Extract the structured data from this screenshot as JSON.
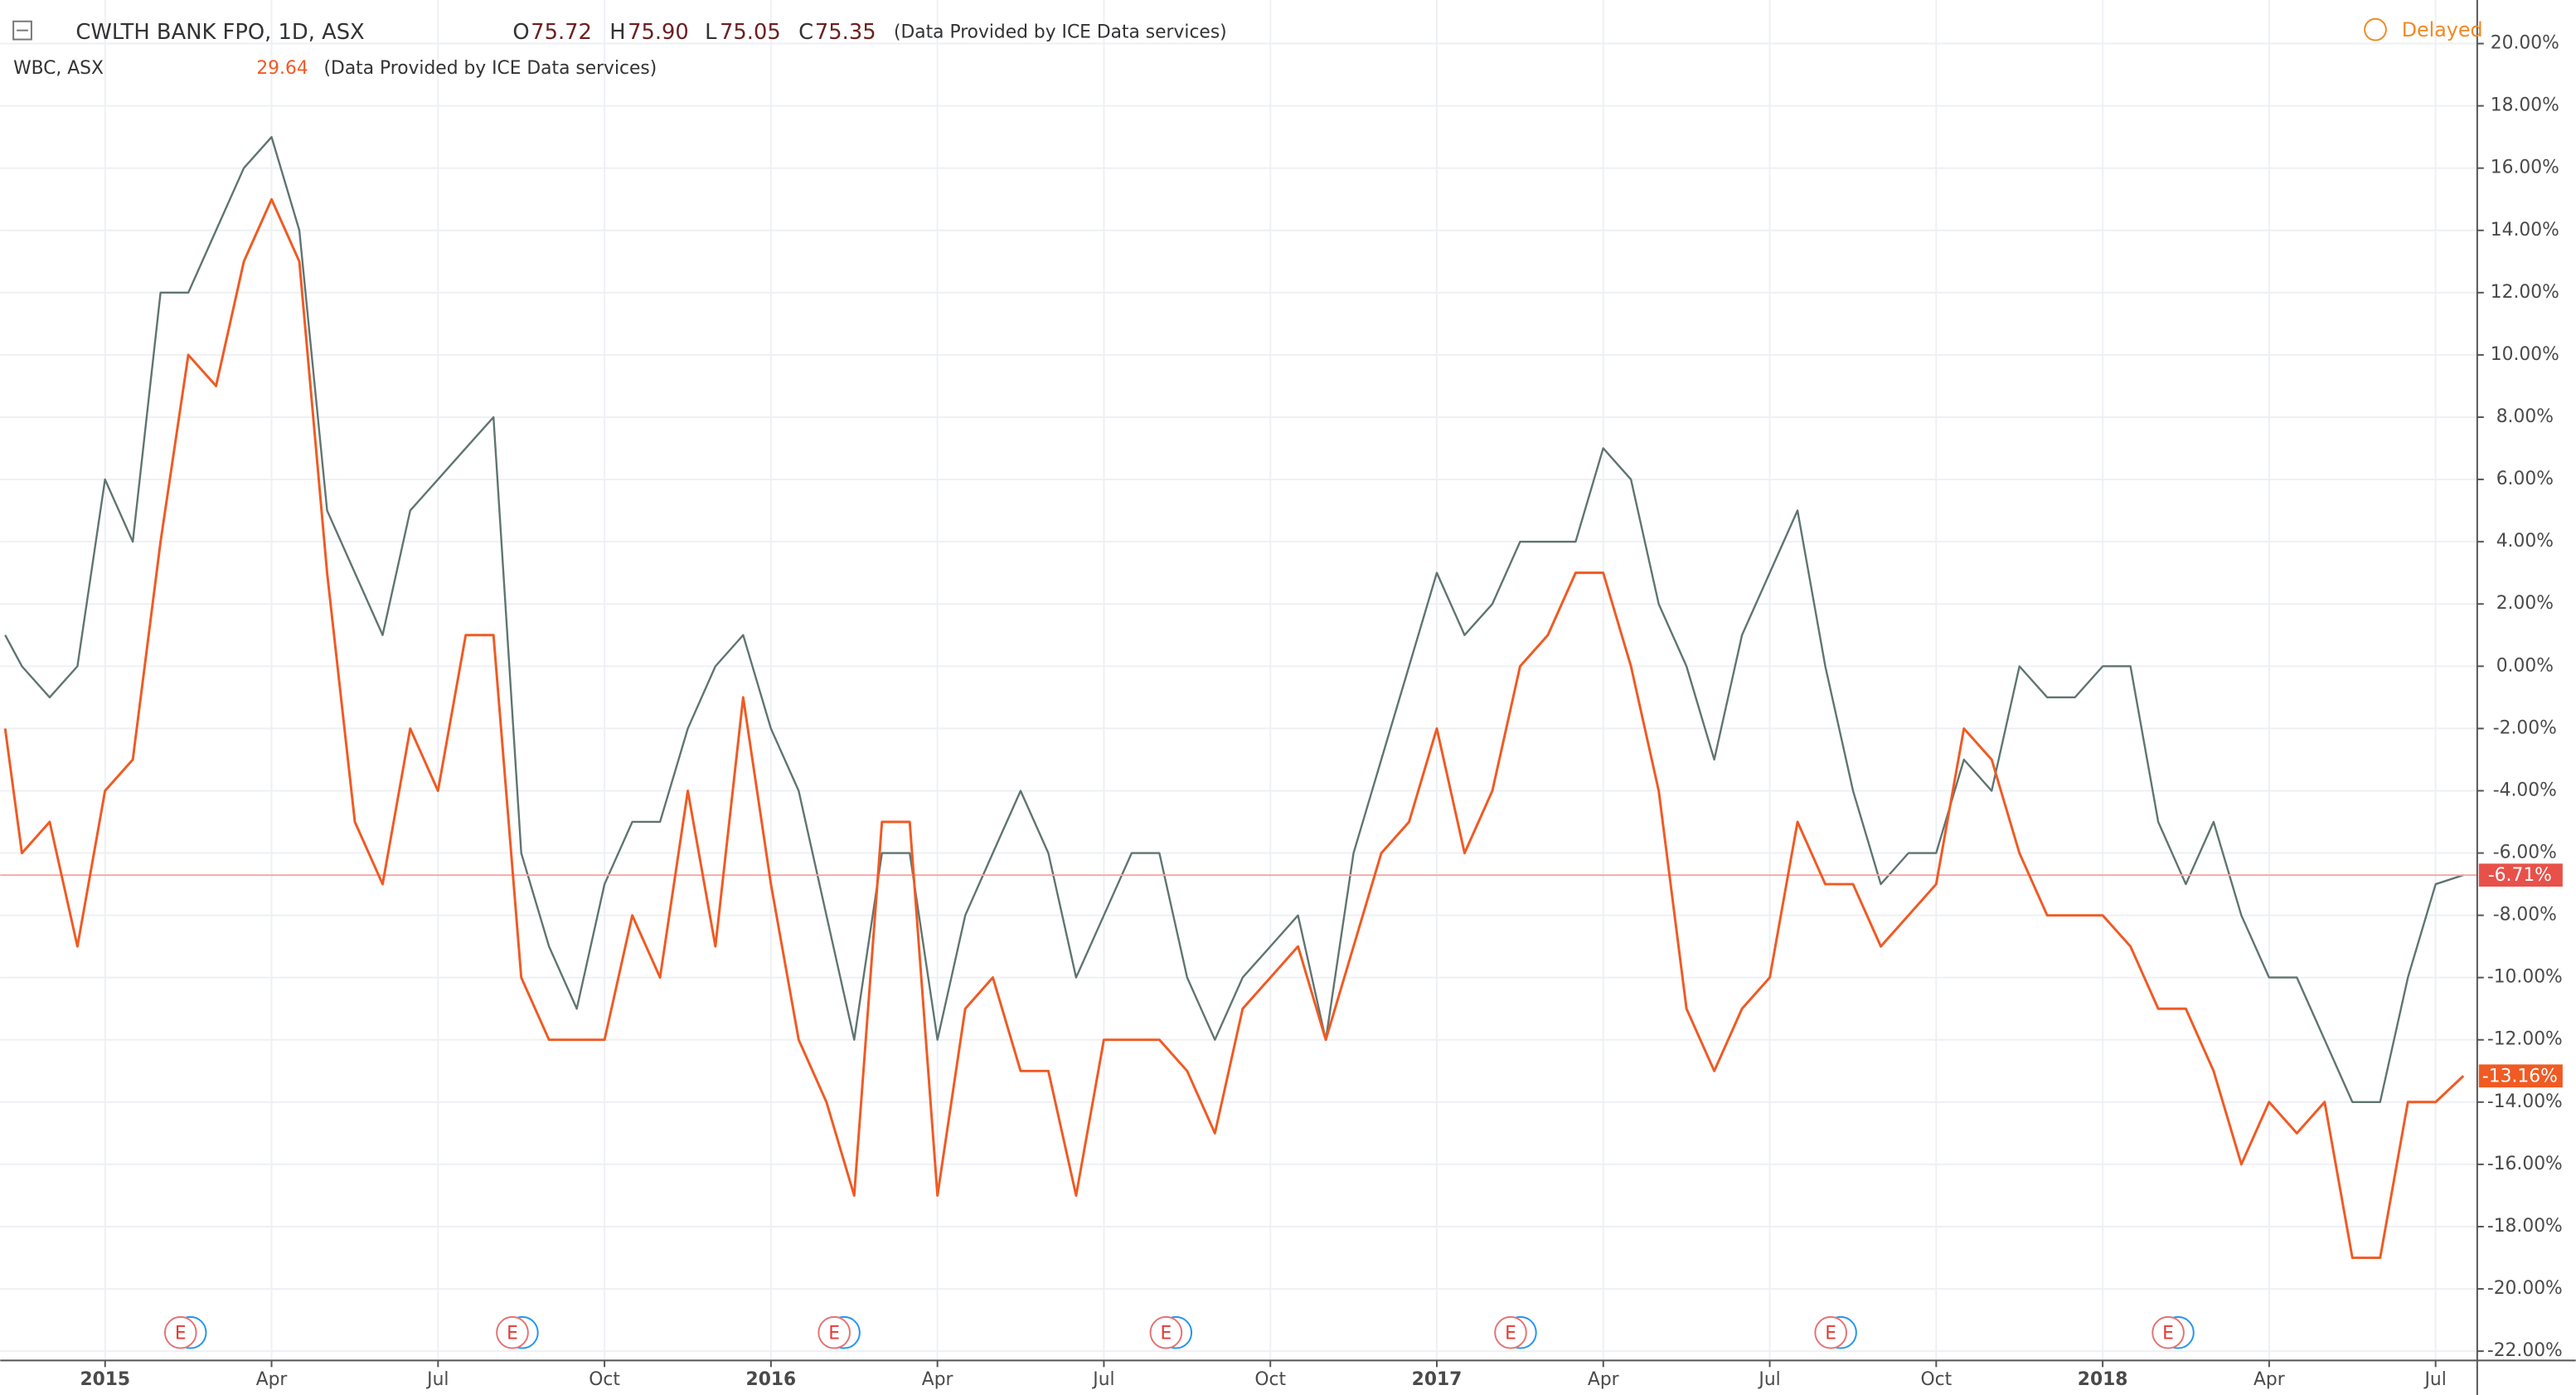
{
  "chart_data": {
    "type": "line",
    "header": {
      "symbol": "CWLTH BANK FPO, 1D, ASX",
      "o_label": "O",
      "open": "75.72",
      "h_label": "H",
      "high": "75.90",
      "l_label": "L",
      "low": "75.05",
      "c_label": "C",
      "close": "75.35",
      "source": "(Data Provided by ICE Data services)",
      "compare_symbol": "WBC, ASX",
      "compare_last": "29.64",
      "compare_source": "(Data Provided by ICE Data services)",
      "status": "Delayed"
    },
    "x": [
      -1.8,
      -1.5,
      -1,
      -0.5,
      0,
      0.5,
      1,
      1.5,
      2,
      2.5,
      3,
      3.5,
      4,
      4.5,
      5,
      5.5,
      6,
      6.5,
      7,
      7.5,
      8,
      8.5,
      9,
      9.5,
      10,
      10.5,
      11,
      11.5,
      12,
      12.5,
      13,
      13.5,
      14,
      14.5,
      15,
      15.5,
      16,
      16.5,
      17,
      17.5,
      18,
      18.5,
      19,
      19.5,
      20,
      20.5,
      21,
      21.5,
      22,
      22.5,
      23,
      23.5,
      24,
      24.5,
      25,
      25.5,
      26,
      26.5,
      27,
      27.5,
      28,
      28.5,
      29,
      29.5,
      30,
      30.5,
      31,
      31.5,
      32,
      32.5,
      33,
      33.5,
      34,
      34.5,
      35,
      35.5,
      36,
      36.5,
      37,
      37.5,
      38,
      38.5,
      39,
      39.5,
      40,
      40.5,
      41,
      41.5,
      42,
      42.5
    ],
    "series": [
      {
        "name": "CWLTH BANK FPO",
        "color": "#5f7470",
        "values": [
          1,
          0,
          -1,
          0,
          6,
          4,
          12,
          12,
          14,
          16,
          17,
          14,
          5,
          3,
          1,
          5,
          6,
          7,
          8,
          -6,
          -9,
          -11,
          -7,
          -5,
          -5,
          -2,
          0,
          1,
          -2,
          -4,
          -8,
          -12,
          -6,
          -6,
          -12,
          -8,
          -6,
          -4,
          -6,
          -10,
          -8,
          -6,
          -6,
          -10,
          -12,
          -10,
          -9,
          -8,
          -12,
          -6,
          -3,
          0,
          3,
          1,
          2,
          4,
          4,
          4,
          7,
          6,
          2,
          0,
          -3,
          1,
          3,
          5,
          0,
          -4,
          -7,
          -6,
          -6,
          -3,
          -4,
          0,
          -1,
          -1,
          0,
          0,
          -5,
          -7,
          -5,
          -8,
          -10,
          -10,
          -12,
          -14,
          -14,
          -10,
          -7,
          -6.71
        ],
        "value_labels": [
          null,
          null,
          null,
          null,
          null,
          null,
          null,
          null,
          null,
          null,
          null,
          null,
          null,
          null,
          null,
          null,
          null,
          null,
          null,
          null,
          null,
          null,
          null,
          null,
          null,
          null,
          null,
          null,
          null,
          null,
          null,
          null,
          null,
          null,
          null,
          null,
          null,
          null,
          null,
          null,
          null,
          null,
          null,
          null,
          null,
          null,
          null,
          null,
          null,
          null,
          null,
          null,
          null,
          null,
          null,
          null,
          null,
          null,
          null,
          null,
          null,
          null,
          null,
          null,
          null,
          null,
          null,
          null,
          null,
          null,
          null,
          null,
          null,
          null,
          null,
          null,
          null,
          null,
          null,
          null,
          null,
          null,
          null,
          null,
          null,
          null,
          null,
          null,
          null,
          "-6.71%"
        ]
      },
      {
        "name": "WBC",
        "color": "#f05a23",
        "values": [
          -2,
          -6,
          -5,
          -9,
          -4,
          -3,
          4,
          10,
          9,
          13,
          15,
          13,
          3,
          -5,
          -7,
          -2,
          -4,
          1,
          1,
          -10,
          -12,
          -12,
          -12,
          -8,
          -10,
          -4,
          -9,
          -1,
          -7,
          -12,
          -14,
          -17,
          -5,
          -5,
          -17,
          -11,
          -10,
          -13,
          -13,
          -17,
          -12,
          -12,
          -12,
          -13,
          -15,
          -11,
          -10,
          -9,
          -12,
          -9,
          -6,
          -5,
          -2,
          -6,
          -4,
          0,
          1,
          3,
          3,
          0,
          -4,
          -11,
          -13,
          -11,
          -10,
          -5,
          -7,
          -7,
          -9,
          -8,
          -7,
          -2,
          -3,
          -6,
          -8,
          -8,
          -8,
          -9,
          -11,
          -11,
          -13,
          -16,
          -14,
          -15,
          -14,
          -19,
          -19,
          -14,
          -14,
          -13.16
        ],
        "value_labels": [
          null,
          null,
          null,
          null,
          null,
          null,
          null,
          null,
          null,
          null,
          null,
          null,
          null,
          null,
          null,
          null,
          null,
          null,
          null,
          null,
          null,
          null,
          null,
          null,
          null,
          null,
          null,
          null,
          null,
          null,
          null,
          null,
          null,
          null,
          null,
          null,
          null,
          null,
          null,
          null,
          null,
          null,
          null,
          null,
          null,
          null,
          null,
          null,
          null,
          null,
          null,
          null,
          null,
          null,
          null,
          null,
          null,
          null,
          null,
          null,
          null,
          null,
          null,
          null,
          null,
          null,
          null,
          null,
          null,
          null,
          null,
          null,
          null,
          null,
          null,
          null,
          null,
          null,
          null,
          null,
          null,
          null,
          null,
          null,
          null,
          null,
          null,
          null,
          null,
          "-13.16%"
        ]
      }
    ],
    "earnings": [
      {
        "x": 1.36,
        "label": "E"
      },
      {
        "x": 7.34,
        "label": "E"
      },
      {
        "x": 13.14,
        "label": "E"
      },
      {
        "x": 19.12,
        "label": "E"
      },
      {
        "x": 25.33,
        "label": "E"
      },
      {
        "x": 31.1,
        "label": "E"
      },
      {
        "x": 37.18,
        "label": "E"
      }
    ],
    "xlim": [
      -1.89,
      42.75
    ],
    "xticks": [
      {
        "value": 0,
        "label": "2015"
      },
      {
        "value": 3,
        "label": "Apr"
      },
      {
        "value": 6,
        "label": "Jul"
      },
      {
        "value": 9,
        "label": "Oct"
      },
      {
        "value": 12,
        "label": "2016"
      },
      {
        "value": 15,
        "label": "Apr"
      },
      {
        "value": 18,
        "label": "Jul"
      },
      {
        "value": 21,
        "label": "Oct"
      },
      {
        "value": 24,
        "label": "2017"
      },
      {
        "value": 27,
        "label": "Apr"
      },
      {
        "value": 30,
        "label": "Jul"
      },
      {
        "value": 33,
        "label": "Oct"
      },
      {
        "value": 36,
        "label": "2018"
      },
      {
        "value": 39,
        "label": "Apr"
      },
      {
        "value": 42,
        "label": "Jul"
      }
    ],
    "ylim": [
      -22.3,
      21.4
    ],
    "yticks": [
      {
        "value": 20,
        "label": "20.00%"
      },
      {
        "value": 18,
        "label": "18.00%"
      },
      {
        "value": 16,
        "label": "16.00%"
      },
      {
        "value": 14,
        "label": "14.00%"
      },
      {
        "value": 12,
        "label": "12.00%"
      },
      {
        "value": 10,
        "label": "10.00%"
      },
      {
        "value": 8,
        "label": "8.00%"
      },
      {
        "value": 6,
        "label": "6.00%"
      },
      {
        "value": 4,
        "label": "4.00%"
      },
      {
        "value": 2,
        "label": "2.00%"
      },
      {
        "value": 0,
        "label": "0.00%"
      },
      {
        "value": -2,
        "label": "-2.00%"
      },
      {
        "value": -4,
        "label": "-4.00%"
      },
      {
        "value": -6,
        "label": "-6.00%"
      },
      {
        "value": -8,
        "label": "-8.00%"
      },
      {
        "value": -10,
        "label": "-10.00%"
      },
      {
        "value": -12,
        "label": "-12.00%"
      },
      {
        "value": -14,
        "label": "-14.00%"
      },
      {
        "value": -16,
        "label": "-16.00%"
      },
      {
        "value": -18,
        "label": "-18.00%"
      },
      {
        "value": -20,
        "label": "-20.00%"
      },
      {
        "value": -22,
        "label": "-22.00%"
      }
    ],
    "grid": true
  }
}
